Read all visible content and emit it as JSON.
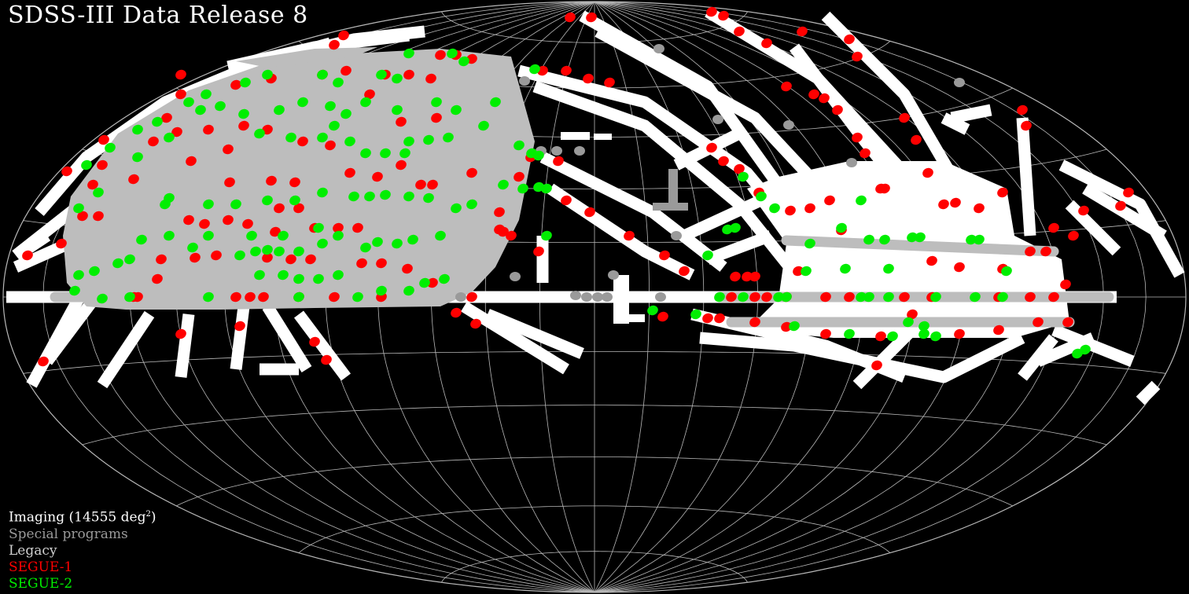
{
  "title": "SDSS-III Data Release 8",
  "legend": {
    "imaging_prefix": "Imaging (14555 deg",
    "imaging_sup": "2",
    "imaging_suffix": ")",
    "special": "Special programs",
    "legacy": "Legacy",
    "segue1": "SEGUE-1",
    "segue2": "SEGUE-2"
  },
  "colors": {
    "background": "#000000",
    "grid": "#b8b8b8",
    "imaging": "#ffffff",
    "special": "#9a9a9a",
    "legacy": "#bdbdbd",
    "segue1": "#ff0000",
    "segue2": "#00ee00"
  }
}
